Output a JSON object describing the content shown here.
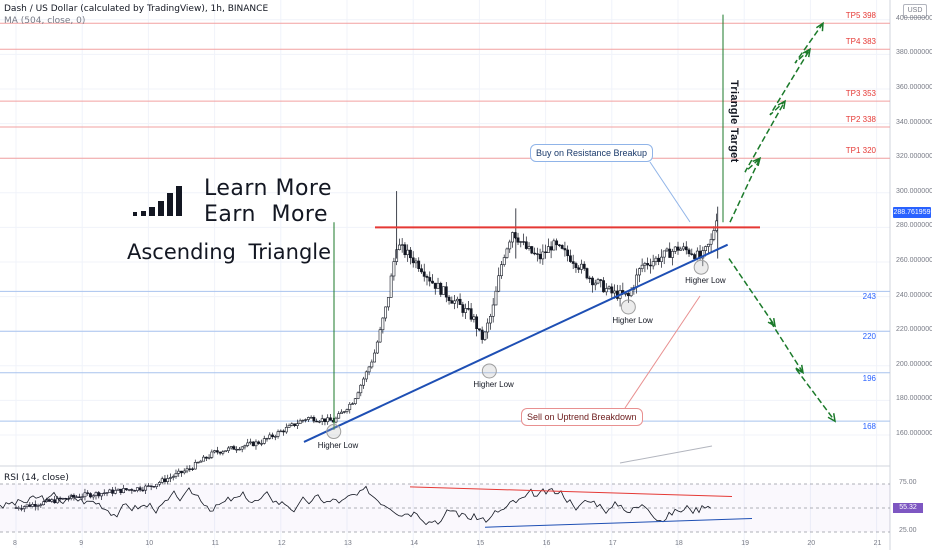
{
  "header": {
    "title": "Dash / US Dollar (calculated by TradingView), 1h, BINANCE",
    "ma_label": "MA (504, close, 0)",
    "currency_badge": "USD",
    "rsi_label": "RSI (14, close)"
  },
  "overlay_text": {
    "learn_line_1": "Learn More",
    "learn_line_2": "Earn More",
    "pattern_name": "Ascending Triangle",
    "buy_callout": "Buy on Resistance Breakup",
    "sell_callout": "Sell on Uptrend Breakdown",
    "triangle_target": "Triangle Target"
  },
  "colors": {
    "candle_up": "#131722",
    "candle_down": "#131722",
    "resistance": "#e53935",
    "trendline": "#1e4fb4",
    "target_arrow": "#1b7a2a",
    "tp_line": "#f2a0a0",
    "support_line": "#a8c3ee",
    "rsi_line": "#131722",
    "current_price": "#2962ff"
  },
  "chart_data": [
    {
      "type": "candlestick",
      "title": "Dash / US Dollar (calculated by TradingView), 1h, BINANCE",
      "x_tick_labels": [
        "8",
        "9",
        "10",
        "11",
        "12",
        "13",
        "14",
        "15",
        "16",
        "17",
        "18",
        "19",
        "20",
        "21"
      ],
      "y_tick_labels": [
        "160.000000",
        "180.000000",
        "200.000000",
        "220.000000",
        "240.000000",
        "260.000000",
        "280.000000",
        "300.000000",
        "320.000000",
        "340.000000",
        "360.000000",
        "380.000000",
        "400.000000"
      ],
      "ylim": [
        147,
        405
      ],
      "current_price": "288.761959",
      "resistance_level": 280,
      "take_profit_levels": [
        {
          "label": "TP1",
          "value": 320
        },
        {
          "label": "TP2",
          "value": 338
        },
        {
          "label": "TP3",
          "value": 353
        },
        {
          "label": "TP4",
          "value": 383
        },
        {
          "label": "TP5",
          "value": 398
        }
      ],
      "support_levels": [
        243,
        220,
        196,
        168
      ],
      "higher_lows": [
        {
          "label": "Higher Low",
          "day": 12.8,
          "price": 162
        },
        {
          "label": "Higher Low",
          "day": 15.15,
          "price": 197
        },
        {
          "label": "Higher Low",
          "day": 17.25,
          "price": 234
        },
        {
          "label": "Higher Low",
          "day": 18.35,
          "price": 257
        }
      ],
      "trendline": {
        "from": {
          "day": 12.35,
          "price": 156
        },
        "to": {
          "day": 18.75,
          "price": 270
        }
      },
      "breakout_targets": [
        398,
        383,
        353,
        320
      ],
      "breakdown_targets": [
        220,
        196,
        168
      ]
    },
    {
      "type": "line",
      "title": "RSI (14, close)",
      "y_tick_labels": [
        "75.00",
        "50.00",
        "25.00"
      ],
      "current_value": "55.32",
      "ylim": [
        20,
        85
      ]
    }
  ]
}
